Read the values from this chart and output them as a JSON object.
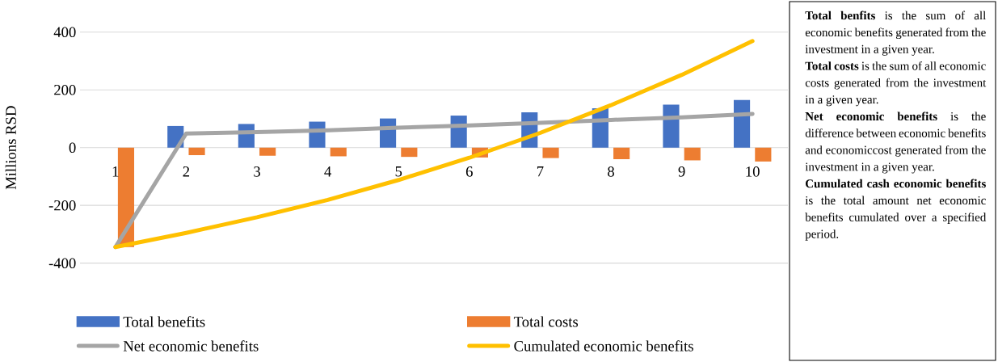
{
  "chart_data": {
    "type": "bar",
    "ylabel": "Millions RSD",
    "categories": [
      "1",
      "2",
      "3",
      "4",
      "5",
      "6",
      "7",
      "8",
      "9",
      "10"
    ],
    "series": [
      {
        "name": "Total benefits",
        "color": "#4472c4",
        "values": [
          0,
          75,
          82,
          90,
          101,
          111,
          122,
          136,
          149,
          165
        ]
      },
      {
        "name": "Total costs",
        "color": "#ed7d31",
        "values": [
          -344,
          -26,
          -28,
          -30,
          -32,
          -34,
          -36,
          -40,
          -44,
          -48
        ]
      },
      {
        "name": "Net economic benefits",
        "type": "line",
        "color": "#a5a5a5",
        "values": [
          -344,
          49,
          54,
          60,
          69,
          77,
          86,
          96,
          105,
          117
        ]
      },
      {
        "name": "Cumulated economic benefits",
        "type": "line",
        "color": "#ffc000",
        "values": [
          -344,
          -295,
          -241,
          -181,
          -112,
          -35,
          51,
          147,
          252,
          369
        ]
      }
    ],
    "ylim": [
      -400,
      400
    ],
    "yticks": [
      -400,
      -200,
      0,
      200,
      400
    ],
    "grid": "y",
    "legend": "bottom",
    "annotations": [
      "**Total benfits** is the sum of all economic benefits generated from the investment in a given year.",
      "**Total costs** is the sum of all economic costs generated from the investment in a given year.",
      "**Net economic benefits** is the difference between economic benefits and economiccost generated from the investment in a given year.",
      "**Cumulated cash economic benefits** is the total amount net economic benefits cumulated over a specified period."
    ]
  }
}
